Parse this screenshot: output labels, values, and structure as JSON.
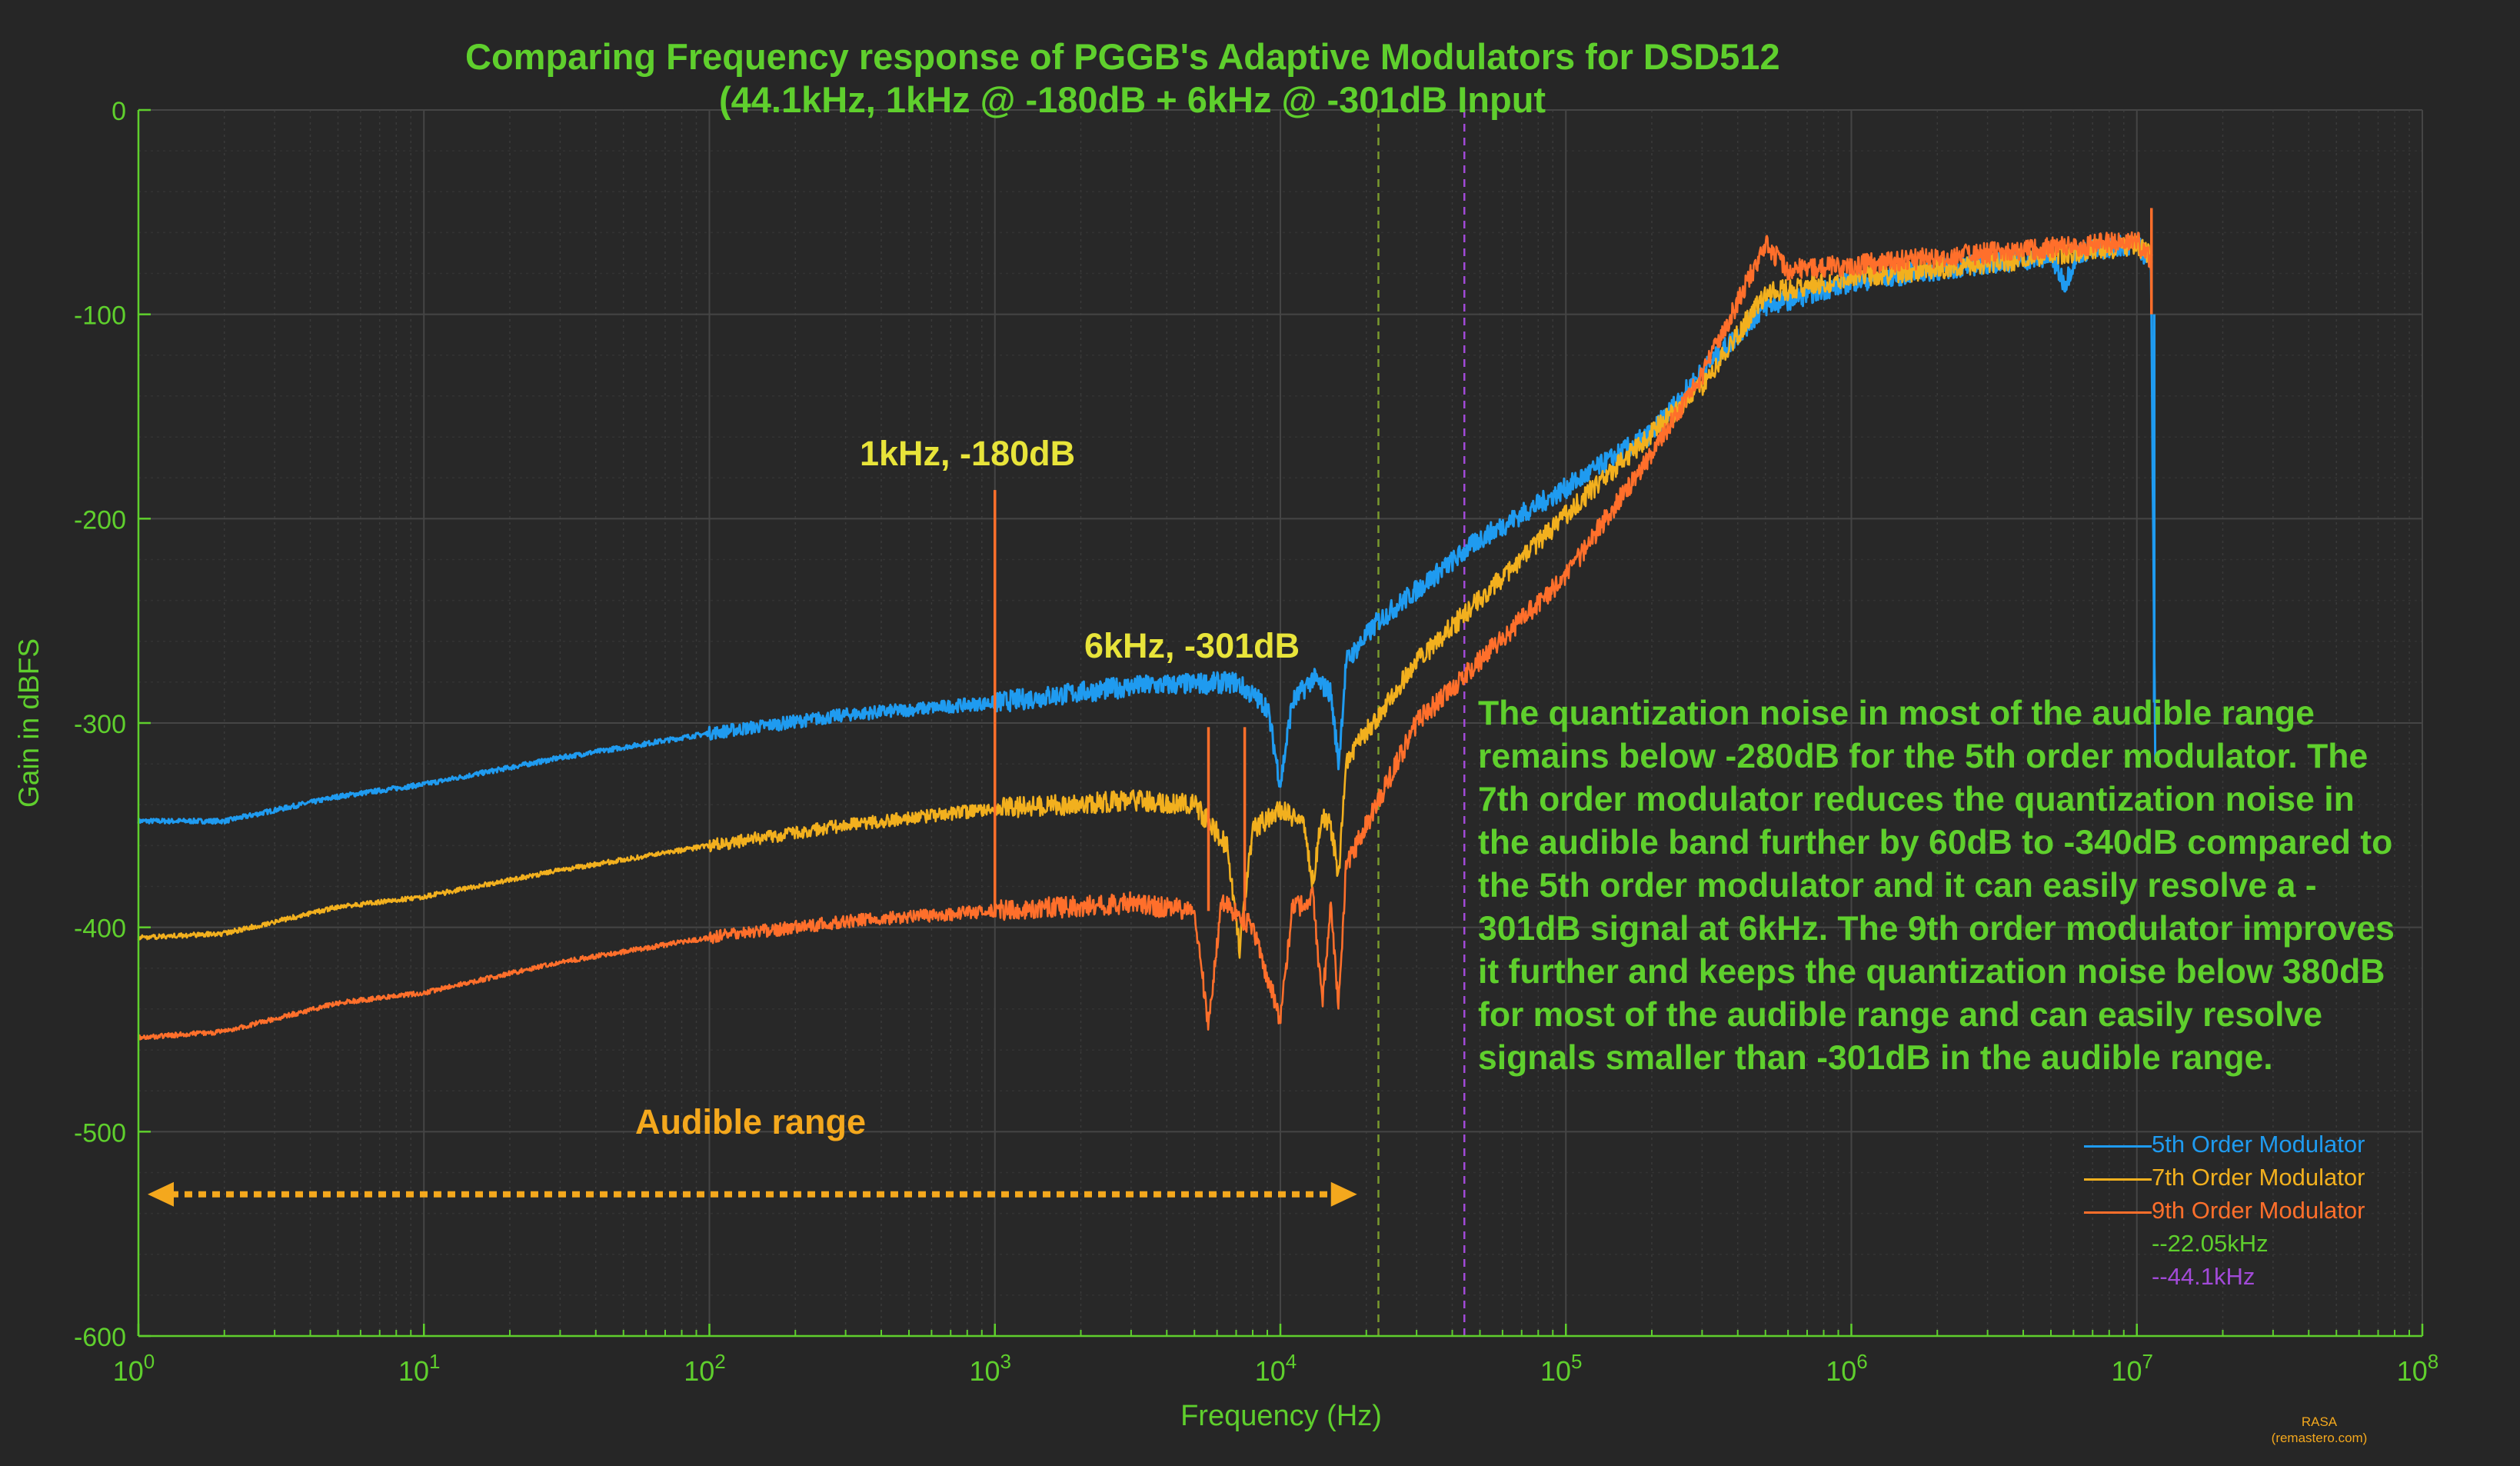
{
  "colors": {
    "background": "#262626",
    "axis": "#5fcf2d",
    "series5": "#1f9bf0",
    "series7": "#f2b01e",
    "series9": "#ff6f2b",
    "ref22": "#7a9a2e",
    "ref44": "#a24ad8",
    "annotation": "#e8e43a",
    "audible": "#f4a81d",
    "note": "#5fcf2d"
  },
  "chart_data": {
    "type": "line",
    "title": "Comparing Frequency response of PGGB's Adaptive Modulators for  DSD512",
    "subtitle": "(44.1kHz, 1kHz @ -180dB + 6kHz @ -301dB Input",
    "xlabel": "Frequency (Hz)",
    "ylabel": "Gain in dBFS",
    "xscale": "log",
    "xlim": [
      1,
      100000000
    ],
    "ylim": [
      -600,
      0
    ],
    "x_ticks": [
      {
        "value": 1,
        "base": "10",
        "exp": "0"
      },
      {
        "value": 10,
        "base": "10",
        "exp": "1"
      },
      {
        "value": 100,
        "base": "10",
        "exp": "2"
      },
      {
        "value": 1000,
        "base": "10",
        "exp": "3"
      },
      {
        "value": 10000,
        "base": "10",
        "exp": "4"
      },
      {
        "value": 100000,
        "base": "10",
        "exp": "5"
      },
      {
        "value": 1000000,
        "base": "10",
        "exp": "6"
      },
      {
        "value": 10000000,
        "base": "10",
        "exp": "7"
      },
      {
        "value": 100000000,
        "base": "10",
        "exp": "8"
      }
    ],
    "y_ticks": [
      "0",
      "-100",
      "-200",
      "-300",
      "-400",
      "-500",
      "-600"
    ],
    "grid": true,
    "legend_position": "bottom-right",
    "series": [
      {
        "name": "5th Order Modulator",
        "color": "#1f9bf0",
        "noise": 4,
        "points": [
          [
            1,
            -348
          ],
          [
            2,
            -348
          ],
          [
            5,
            -336
          ],
          [
            10,
            -330
          ],
          [
            30,
            -317
          ],
          [
            100,
            -305
          ],
          [
            300,
            -296
          ],
          [
            1000,
            -290
          ],
          [
            3000,
            -282
          ],
          [
            7000,
            -280
          ],
          [
            9000,
            -292
          ],
          [
            10000,
            -330
          ],
          [
            11000,
            -290
          ],
          [
            13000,
            -278
          ],
          [
            15000,
            -285
          ],
          [
            16000,
            -320
          ],
          [
            17000,
            -270
          ],
          [
            22050,
            -250
          ],
          [
            50000,
            -210
          ],
          [
            100000,
            -185
          ],
          [
            200000,
            -158
          ],
          [
            300000,
            -128
          ],
          [
            500000,
            -96
          ],
          [
            1000000,
            -84
          ],
          [
            3000000,
            -75
          ],
          [
            5000000,
            -72
          ],
          [
            5600000,
            -85
          ],
          [
            6200000,
            -70
          ],
          [
            10000000,
            -65
          ],
          [
            11200000,
            -75
          ],
          [
            11600000,
            -320
          ]
        ]
      },
      {
        "name": "7th Order Modulator",
        "color": "#f2b01e",
        "noise": 4,
        "points": [
          [
            1,
            -405
          ],
          [
            2,
            -403
          ],
          [
            5,
            -390
          ],
          [
            10,
            -385
          ],
          [
            30,
            -372
          ],
          [
            100,
            -360
          ],
          [
            300,
            -350
          ],
          [
            1000,
            -342
          ],
          [
            3000,
            -338
          ],
          [
            5000,
            -340
          ],
          [
            6500,
            -360
          ],
          [
            7200,
            -410
          ],
          [
            8000,
            -352
          ],
          [
            10000,
            -342
          ],
          [
            12000,
            -350
          ],
          [
            13000,
            -378
          ],
          [
            14000,
            -345
          ],
          [
            15000,
            -350
          ],
          [
            16000,
            -375
          ],
          [
            17000,
            -318
          ],
          [
            30000,
            -270
          ],
          [
            100000,
            -198
          ],
          [
            200000,
            -158
          ],
          [
            300000,
            -135
          ],
          [
            500000,
            -90
          ],
          [
            1000000,
            -82
          ],
          [
            3000000,
            -75
          ],
          [
            10000000,
            -66
          ],
          [
            11300000,
            -72
          ]
        ]
      },
      {
        "name": "9th Order Modulator",
        "color": "#ff6f2b",
        "noise": 4,
        "points": [
          [
            1,
            -454
          ],
          [
            2,
            -451
          ],
          [
            5,
            -437
          ],
          [
            10,
            -432
          ],
          [
            30,
            -417
          ],
          [
            100,
            -405
          ],
          [
            300,
            -397
          ],
          [
            1000,
            -392
          ],
          [
            3000,
            -388
          ],
          [
            5000,
            -392
          ],
          [
            5600,
            -448
          ],
          [
            6200,
            -388
          ],
          [
            8000,
            -400
          ],
          [
            10000,
            -445
          ],
          [
            11000,
            -392
          ],
          [
            13000,
            -385
          ],
          [
            14000,
            -438
          ],
          [
            15000,
            -390
          ],
          [
            16000,
            -438
          ],
          [
            17000,
            -370
          ],
          [
            30000,
            -300
          ],
          [
            100000,
            -228
          ],
          [
            200000,
            -168
          ],
          [
            300000,
            -130
          ],
          [
            500000,
            -66
          ],
          [
            600000,
            -78
          ],
          [
            1000000,
            -76
          ],
          [
            3000000,
            -70
          ],
          [
            10000000,
            -64
          ],
          [
            11300000,
            -75
          ]
        ]
      }
    ],
    "spikes": [
      {
        "series": "9th Order Modulator",
        "x": 1000,
        "y_from": -392,
        "y_to": -186
      },
      {
        "series": "9th Order Modulator",
        "x": 5600,
        "y_from": -392,
        "y_to": -302
      },
      {
        "series": "9th Order Modulator",
        "x": 7500,
        "y_from": -392,
        "y_to": -302
      },
      {
        "series": "5th Order Modulator",
        "x": 11500000,
        "y_from": -100,
        "y_to": -290
      },
      {
        "series": "9th Order Modulator",
        "x": 11250000,
        "y_from": -100,
        "y_to": -48
      }
    ],
    "reference_lines": [
      {
        "name": "--22.05kHz",
        "x": 22050,
        "color": "#7a9a2e"
      },
      {
        "name": "--44.1kHz",
        "x": 44100,
        "color": "#a24ad8"
      }
    ],
    "annotations": [
      {
        "text": "1kHz, -180dB"
      },
      {
        "text": "6kHz, -301dB"
      }
    ],
    "audible_range": {
      "label": "Audible range",
      "x_from": 1,
      "x_to": 20000,
      "y": -525
    },
    "note_lines": [
      "The quantization noise in most of the audible range",
      "remains below -280dB for the 5th order modulator. The",
      "7th order modulator reduces the quantization noise in",
      "the audible band further by 60dB to -340dB compared to",
      "the 5th order modulator and it can easily resolve a -",
      "301dB signal at 6kHz. The 9th order modulator improves",
      "it further and keeps the quantization noise below 380dB",
      "for most of the audible range and can easily resolve",
      "signals smaller than -301dB in the audible range."
    ]
  },
  "credit": {
    "line1": "RASA",
    "line2": "(remastero.com)"
  }
}
